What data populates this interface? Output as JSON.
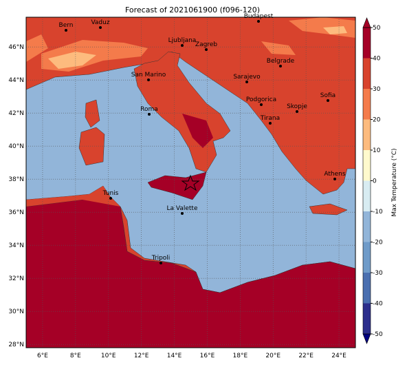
{
  "map": {
    "title": "Forecast of 2021061900 (f096-120)",
    "xlim": [
      5,
      25
    ],
    "ylim": [
      27.8,
      47.8
    ],
    "xticks": [
      {
        "value": 6,
        "label": "6°E"
      },
      {
        "value": 8,
        "label": "8°E"
      },
      {
        "value": 10,
        "label": "10°E"
      },
      {
        "value": 12,
        "label": "12°E"
      },
      {
        "value": 14,
        "label": "14°E"
      },
      {
        "value": 16,
        "label": "16°E"
      },
      {
        "value": 18,
        "label": "18°E"
      },
      {
        "value": 20,
        "label": "20°E"
      },
      {
        "value": 22,
        "label": "22°E"
      },
      {
        "value": 24,
        "label": "24°E"
      }
    ],
    "yticks": [
      {
        "value": 28,
        "label": "28°N"
      },
      {
        "value": 30,
        "label": "30°N"
      },
      {
        "value": 32,
        "label": "32°N"
      },
      {
        "value": 34,
        "label": "34°N"
      },
      {
        "value": 36,
        "label": "36°N"
      },
      {
        "value": 38,
        "label": "38°N"
      },
      {
        "value": 40,
        "label": "40°N"
      },
      {
        "value": 42,
        "label": "42°N"
      },
      {
        "value": 44,
        "label": "44°N"
      },
      {
        "value": 46,
        "label": "46°N"
      }
    ],
    "cities": [
      "Bern",
      "Vaduz",
      "Budapest",
      "Ljubljana",
      "Zagreb",
      "Belgrade",
      "San Marino",
      "Sarajevo",
      "Sofia",
      "Podgorica",
      "Skopje",
      "Roma",
      "Tirana",
      "Athens",
      "Tunis",
      "La Valette",
      "Tripoli"
    ],
    "colorbar": {
      "label": "Max Temperature (°C)",
      "lim": [
        -50,
        50
      ],
      "ticks": [
        -50,
        -40,
        -30,
        -20,
        -10,
        0,
        10,
        20,
        30,
        40,
        50
      ],
      "colors": [
        "#2c2e8c",
        "#4a6fb0",
        "#6f9bc9",
        "#92b5d9",
        "#d8ecf2",
        "#fffacd",
        "#fdbb7e",
        "#f47b4b",
        "#d8432d",
        "#a50026"
      ]
    }
  }
}
